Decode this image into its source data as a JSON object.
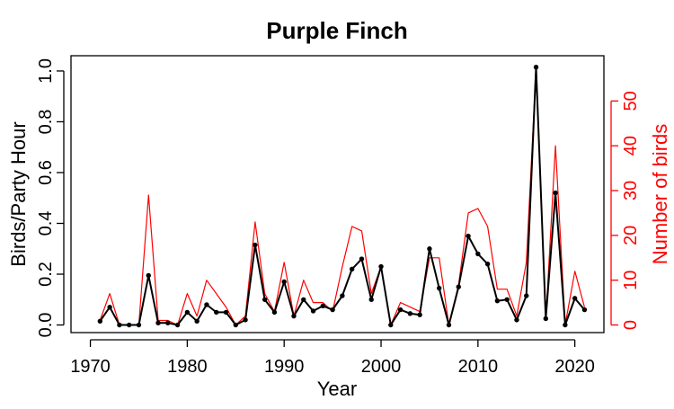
{
  "chart_data": {
    "type": "line",
    "title": "Purple Finch",
    "xlabel": "Year",
    "ylabel": "Birds/Party Hour",
    "y2label": "Number of birds",
    "xlim": [
      1968,
      2023
    ],
    "ylim": [
      -0.03,
      1.06
    ],
    "y2lim": [
      -1.7,
      60.1
    ],
    "x_ticks": [
      1970,
      1980,
      1990,
      2000,
      2010,
      2020
    ],
    "y_ticks": [
      0.0,
      0.2,
      0.4,
      0.6,
      0.8,
      1.0
    ],
    "y_tick_labels": [
      "0.0",
      "0.2",
      "0.4",
      "0.6",
      "0.8",
      "1.0"
    ],
    "y2_ticks": [
      0,
      10,
      20,
      30,
      40,
      50
    ],
    "y2_tick_labels": [
      "0",
      "10",
      "20",
      "30",
      "40",
      "50"
    ],
    "colors": {
      "primary": "#000000",
      "secondary": "#ff0000"
    },
    "grid": false,
    "legend": "none",
    "x": [
      1971,
      1972,
      1973,
      1974,
      1975,
      1976,
      1977,
      1978,
      1979,
      1980,
      1981,
      1982,
      1983,
      1984,
      1985,
      1986,
      1987,
      1988,
      1989,
      1990,
      1991,
      1992,
      1993,
      1994,
      1995,
      1996,
      1997,
      1998,
      1999,
      2000,
      2001,
      2002,
      2003,
      2004,
      2005,
      2006,
      2007,
      2008,
      2009,
      2010,
      2011,
      2012,
      2013,
      2014,
      2015,
      2016,
      2017,
      2018,
      2019,
      2020,
      2021
    ],
    "series": [
      {
        "axis": "left",
        "values": [
          0.015,
          0.07,
          0.0,
          0.0,
          0.0,
          0.195,
          0.008,
          0.008,
          0.0,
          0.05,
          0.015,
          0.08,
          0.05,
          0.05,
          0.0,
          0.02,
          0.315,
          0.1,
          0.05,
          0.17,
          0.035,
          0.1,
          0.055,
          0.075,
          0.06,
          0.115,
          0.22,
          0.26,
          0.1,
          0.23,
          0.0,
          0.06,
          0.045,
          0.04,
          0.3,
          0.145,
          0.0,
          0.15,
          0.35,
          0.28,
          0.24,
          0.095,
          0.1,
          0.02,
          0.115,
          1.015,
          0.025,
          0.52,
          0.0,
          0.105,
          0.06
        ]
      },
      {
        "axis": "right",
        "values": [
          1,
          7,
          0,
          0,
          0,
          29,
          1,
          1,
          0,
          7,
          2,
          10,
          7,
          4,
          0,
          2,
          23,
          7,
          3,
          14,
          2,
          10,
          5,
          5,
          3,
          13,
          22,
          21,
          7,
          13,
          0,
          5,
          4,
          3,
          15,
          15,
          0,
          9,
          25,
          26,
          22,
          8,
          8,
          2,
          14,
          57,
          1,
          40,
          0,
          12,
          4
        ]
      }
    ]
  }
}
